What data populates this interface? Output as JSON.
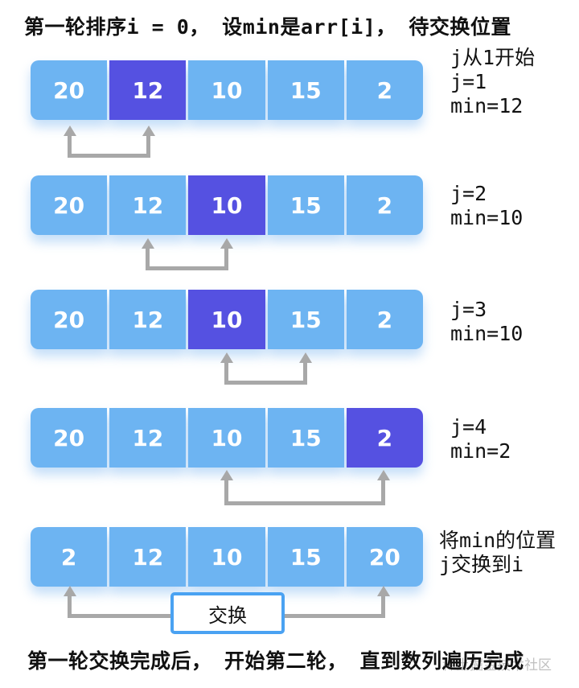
{
  "title": "第一轮排序i = 0， 设min是arr[i]， 待交换位置",
  "footer": "第一轮交换完成后， 开始第二轮， 直到数列遍历完成",
  "watermark": "稀土掘金技术社区",
  "colors": {
    "cell_light": "#6db4f2",
    "cell_highlight": "#5551e1",
    "arrow": "#a8a8a8",
    "swap_box_border": "#4aa2f2"
  },
  "rows": [
    {
      "cells": [
        "20",
        "12",
        "10",
        "15",
        "2"
      ],
      "highlight_index": 1,
      "annotation": [
        "j从1开始",
        "j=1",
        "min=12"
      ],
      "arrow": {
        "from_index": 0,
        "to_index": 1
      }
    },
    {
      "cells": [
        "20",
        "12",
        "10",
        "15",
        "2"
      ],
      "highlight_index": 2,
      "annotation": [
        "j=2",
        "min=10"
      ],
      "arrow": {
        "from_index": 1,
        "to_index": 2
      }
    },
    {
      "cells": [
        "20",
        "12",
        "10",
        "15",
        "2"
      ],
      "highlight_index": 2,
      "annotation": [
        "j=3",
        "min=10"
      ],
      "arrow": {
        "from_index": 2,
        "to_index": 3
      }
    },
    {
      "cells": [
        "20",
        "12",
        "10",
        "15",
        "2"
      ],
      "highlight_index": 4,
      "annotation": [
        "j=4",
        "min=2"
      ],
      "arrow": {
        "from_index": 2,
        "to_index": 4
      }
    },
    {
      "cells": [
        "2",
        "12",
        "10",
        "15",
        "20"
      ],
      "highlight_index": null,
      "annotation": [
        "将min的位置",
        "j交换到i"
      ],
      "arrow": {
        "from_index": 0,
        "to_index": 4,
        "label": "交换"
      }
    }
  ]
}
